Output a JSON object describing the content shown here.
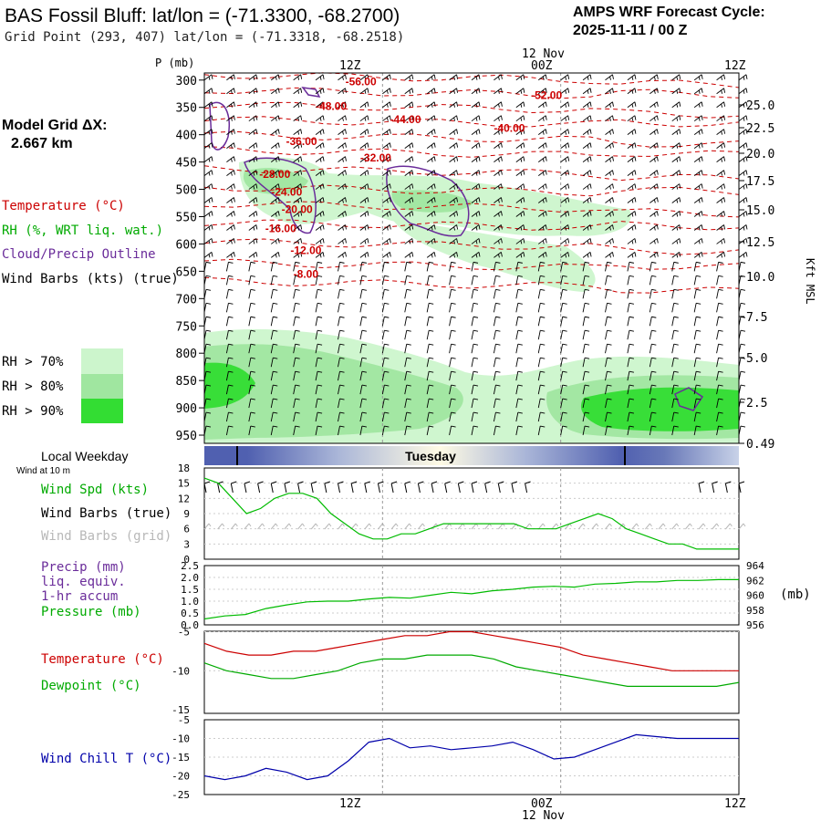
{
  "header": {
    "title": "BAS Fossil Bluff:  lat/lon = (-71.3300, -68.2700)",
    "grid_point": "Grid Point (293, 407) lat/lon = (-71.3318, -68.2518)",
    "cycle_line1": "AMPS WRF Forecast Cycle:",
    "cycle_line2": "2025-11-11 / 00  Z",
    "model_grid_line1": "Model Grid ΔX:",
    "model_grid_line2": "2.667 km"
  },
  "colors": {
    "temperature": "#cc0000",
    "rh": "#00aa00",
    "cloud": "#6a2c9a",
    "pressure": "#00bb00",
    "windchill": "#0000aa",
    "rh70": "#ccf5cc",
    "rh80": "#a0e6a0",
    "rh90": "#33dd33",
    "grid_barb": "#b8b8b8"
  },
  "legend": {
    "temperature": "Temperature (°C)",
    "rh": "RH (%, WRT liq. wat.)",
    "cloud": "Cloud/Precip Outline",
    "wind_barbs": "Wind Barbs (kts) (true)",
    "rh70": "RH > 70%",
    "rh80": "RH > 80%",
    "rh90": "RH > 90%"
  },
  "time_axis": {
    "top_12z": "12Z",
    "top_nov": "12 Nov",
    "top_00z": "00Z",
    "top_12z_end": "12Z",
    "bottom_12z": "12Z",
    "bottom_00z": "00Z",
    "bottom_12z_end": "12Z",
    "bottom_nov": "12 Nov",
    "local_weekday_label": "Local Weekday",
    "day_name": "Tuesday",
    "wind_at_10m": "Wind at 10 m"
  },
  "profile": {
    "pressure_title": "P (mb)",
    "pressure_ticks": [
      "300",
      "350",
      "400",
      "450",
      "500",
      "550",
      "600",
      "650",
      "700",
      "750",
      "800",
      "850",
      "900",
      "950"
    ],
    "height_ticks": [
      "25.0",
      "22.5",
      "20.0",
      "17.5",
      "15.0",
      "12.5",
      "10.0",
      "7.5",
      "5.0",
      "2.5",
      "0.49"
    ],
    "height_axis_label": "Kft MSL"
  },
  "panels": {
    "wind": {
      "label_speed": "Wind Spd (kts)",
      "label_barbs_true": "Wind Barbs (true)",
      "label_barbs_grid": "Wind Barbs (grid)",
      "y_ticks": [
        "18",
        "15",
        "12",
        "9",
        "6",
        "3",
        "0"
      ]
    },
    "precip": {
      "label_precip": "Precip (mm)",
      "label_liq": "liq. equiv.",
      "label_accum": "1-hr accum",
      "label_pressure": "Pressure (mb)",
      "left_ticks": [
        "2.5",
        "2.0",
        "1.5",
        "1.0",
        "0.5",
        "0.0"
      ],
      "right_ticks": [
        "964",
        "962",
        "960",
        "958",
        "956"
      ],
      "right_unit": "(mb)"
    },
    "temp": {
      "label_temp": "Temperature (°C)",
      "label_dew": "Dewpoint (°C)",
      "y_ticks": [
        "-5",
        "-10",
        "-15"
      ]
    },
    "windchill": {
      "label": "Wind Chill T (°C)",
      "y_ticks": [
        "-5",
        "-10",
        "-15",
        "-20",
        "-25"
      ]
    }
  },
  "chart_data": {
    "type": "line",
    "time_hours": [
      0,
      3,
      6,
      9,
      12,
      15,
      18,
      21,
      24,
      27,
      30,
      33,
      36
    ],
    "temperature_contours": [
      {
        "label": "-56.00",
        "hour": 9.5,
        "p": 303
      },
      {
        "label": "-52.00",
        "hour": 22,
        "p": 328
      },
      {
        "label": "-48.00",
        "hour": 7.5,
        "p": 348
      },
      {
        "label": "-44.00",
        "hour": 12.5,
        "p": 372
      },
      {
        "label": "-40.00",
        "hour": 19.5,
        "p": 388
      },
      {
        "label": "-36.00",
        "hour": 5.5,
        "p": 412
      },
      {
        "label": "-32.00",
        "hour": 10.5,
        "p": 442
      },
      {
        "label": "-28.00",
        "hour": 3.7,
        "p": 472
      },
      {
        "label": "-24.00",
        "hour": 4.5,
        "p": 505
      },
      {
        "label": "-20.00",
        "hour": 5.2,
        "p": 537
      },
      {
        "label": "-16.00",
        "hour": 4.1,
        "p": 572
      },
      {
        "label": "-12.00",
        "hour": 5.8,
        "p": 612
      },
      {
        "label": "-8.00",
        "hour": 6.0,
        "p": 655
      }
    ],
    "wind_speed_kts": [
      16,
      15,
      12,
      9,
      10,
      12,
      13,
      13,
      12,
      9,
      7,
      5,
      4,
      4,
      5,
      5,
      6,
      7,
      7,
      7,
      7,
      7,
      7,
      6,
      6,
      6,
      7,
      8,
      9,
      8,
      6,
      5,
      4,
      3,
      3,
      2,
      2,
      2,
      2
    ],
    "precip_mm": [
      0,
      0,
      0,
      0,
      0,
      0,
      0,
      0,
      0,
      0,
      0,
      0,
      0
    ],
    "pressure_mb": [
      956.8,
      957.2,
      957.4,
      958.2,
      958.7,
      959.1,
      959.2,
      959.2,
      959.5,
      959.7,
      959.6,
      960.0,
      960.4,
      960.2,
      960.6,
      960.8,
      961.1,
      961.2,
      961.1,
      961.5,
      961.6,
      961.8,
      961.8,
      962.0,
      962.0,
      962.1,
      962.1
    ],
    "temperature_c": [
      -6.5,
      -7.5,
      -8,
      -8,
      -7.5,
      -7.5,
      -7,
      -6.5,
      -6,
      -5.5,
      -5.5,
      -5,
      -5,
      -5.5,
      -6,
      -6.5,
      -7,
      -8,
      -8.5,
      -9,
      -9.5,
      -10,
      -10,
      -10,
      -10
    ],
    "dewpoint_c": [
      -9,
      -10,
      -10.5,
      -11,
      -11,
      -10.5,
      -10,
      -9,
      -8.5,
      -8.5,
      -8,
      -8,
      -8,
      -8.5,
      -9.5,
      -10,
      -10.5,
      -11,
      -11.5,
      -12,
      -12,
      -12,
      -12,
      -12,
      -11.5
    ],
    "windchill_c": [
      -20,
      -21,
      -20,
      -18,
      -19,
      -21,
      -20,
      -16,
      -11,
      -10,
      -12.5,
      -12,
      -13,
      -12.5,
      -12,
      -11,
      -13,
      -15.5,
      -15,
      -13,
      -11,
      -9,
      -9.5,
      -10,
      -10,
      -10,
      -10
    ],
    "axes": {
      "wind_ylim": [
        0,
        18
      ],
      "precip_ylim": [
        0,
        2.5
      ],
      "pressure_ylim": [
        956,
        964
      ],
      "temp_ylim": [
        -15,
        -5
      ],
      "windchill_ylim": [
        -25,
        -5
      ]
    }
  }
}
